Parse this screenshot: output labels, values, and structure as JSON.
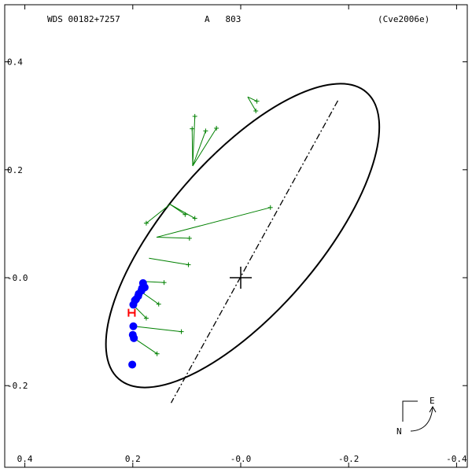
{
  "header": {
    "left": "WDS 00182+7257",
    "middle": "A   803",
    "right": "(Cve2006e)"
  },
  "compass": {
    "east": "E",
    "north": "N"
  },
  "chart_data": {
    "type": "scatter",
    "xlim": [
      0.4,
      -0.4
    ],
    "ylim": [
      -0.3,
      0.4
    ],
    "x_ticks": [
      {
        "value": 0.4,
        "label": "0.4"
      },
      {
        "value": 0.2,
        "label": "0.2"
      },
      {
        "value": 0.0,
        "label": "-0.0"
      },
      {
        "value": -0.2,
        "label": "-0.2"
      },
      {
        "value": -0.4,
        "label": "-0.4"
      }
    ],
    "y_ticks": [
      {
        "value": 0.4,
        "label": "0.4"
      },
      {
        "value": 0.2,
        "label": "0.2"
      },
      {
        "value": 0.0,
        "label": "-0.0"
      },
      {
        "value": -0.2,
        "label": "-0.2"
      }
    ],
    "orbit": {
      "center": [
        -0.0035,
        0.078
      ],
      "semi_major": 0.351,
      "semi_minor": 0.142,
      "major_axis_angle_deg": 49.2,
      "color": "#000000"
    },
    "line_of_apsides": {
      "from": [
        -0.18,
        0.328
      ],
      "to": [
        0.129,
        -0.232
      ]
    },
    "primary_star": [
      0.0,
      0.0
    ],
    "periastron_marker": [
      0.202,
      -0.065
    ],
    "micrometer_observations": {
      "color": "#008000",
      "points": [
        {
          "obs": [
            -0.028,
            0.309
          ],
          "fit": [
            -0.013,
            0.335
          ]
        },
        {
          "obs": [
            -0.03,
            0.327
          ],
          "fit": [
            -0.013,
            0.335
          ]
        },
        {
          "obs": [
            0.085,
            0.299
          ],
          "fit": [
            0.089,
            0.207
          ]
        },
        {
          "obs": [
            0.09,
            0.276
          ],
          "fit": [
            0.089,
            0.207
          ]
        },
        {
          "obs": [
            0.065,
            0.272
          ],
          "fit": [
            0.089,
            0.207
          ]
        },
        {
          "obs": [
            0.045,
            0.277
          ],
          "fit": [
            0.089,
            0.207
          ]
        },
        {
          "obs": [
            0.175,
            0.101
          ],
          "fit": [
            0.131,
            0.136
          ]
        },
        {
          "obs": [
            0.103,
            0.117
          ],
          "fit": [
            0.131,
            0.136
          ]
        },
        {
          "obs": [
            0.085,
            0.11
          ],
          "fit": [
            0.131,
            0.136
          ]
        },
        {
          "obs": [
            -0.055,
            0.13
          ],
          "fit": [
            0.156,
            0.075
          ]
        },
        {
          "obs": [
            0.095,
            0.073
          ],
          "fit": [
            0.156,
            0.075
          ]
        },
        {
          "obs": [
            0.097,
            0.024
          ],
          "fit": [
            0.17,
            0.036
          ]
        },
        {
          "obs": [
            0.142,
            -0.009
          ],
          "fit": [
            0.181,
            -0.007
          ]
        },
        {
          "obs": [
            0.152,
            -0.049
          ],
          "fit": [
            0.186,
            -0.025
          ]
        },
        {
          "obs": [
            0.175,
            -0.075
          ],
          "fit": [
            0.195,
            -0.055
          ]
        },
        {
          "obs": [
            0.11,
            -0.1
          ],
          "fit": [
            0.198,
            -0.09
          ]
        },
        {
          "obs": [
            0.155,
            -0.141
          ],
          "fit": [
            0.198,
            -0.112
          ]
        }
      ]
    },
    "interferometric_observations": {
      "color": "#0000ff",
      "points": [
        [
          0.181,
          -0.01
        ],
        [
          0.178,
          -0.018
        ],
        [
          0.183,
          -0.02
        ],
        [
          0.184,
          -0.024
        ],
        [
          0.189,
          -0.03
        ],
        [
          0.19,
          -0.034
        ],
        [
          0.194,
          -0.04
        ],
        [
          0.196,
          -0.042
        ],
        [
          0.199,
          -0.05
        ],
        [
          0.199,
          -0.09
        ],
        [
          0.2,
          -0.106
        ],
        [
          0.198,
          -0.112
        ],
        [
          0.201,
          -0.161
        ]
      ]
    }
  }
}
